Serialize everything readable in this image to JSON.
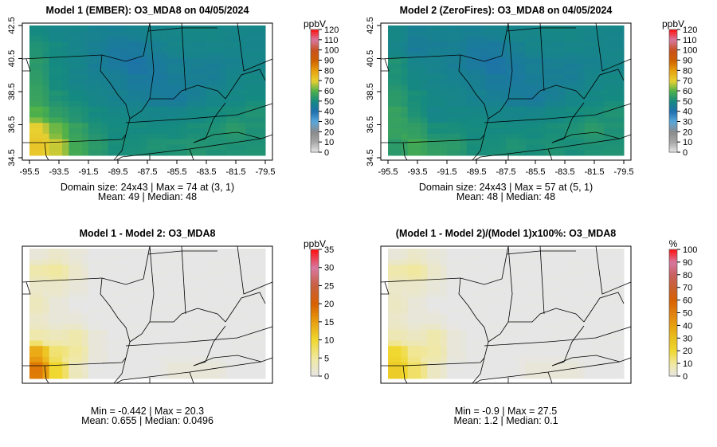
{
  "chart_data": [
    {
      "type": "heatmap",
      "title": "Model 1 (EMBER): O3_MDA8 on 04/05/2024",
      "scale": "conc",
      "unit": "ppbV",
      "legend_ticks": [
        "0",
        "10",
        "20",
        "30",
        "40",
        "50",
        "60",
        "70",
        "80",
        "90",
        "100",
        "110",
        "120"
      ],
      "zlim": [
        0,
        120
      ],
      "xticks": [
        "-95.5",
        "-93.5",
        "-91.5",
        "-89.5",
        "-87.5",
        "-85.5",
        "-83.5",
        "-81.5",
        "-79.5"
      ],
      "yticks": [
        "34.5",
        "36.5",
        "38.5",
        "40.5",
        "42.5"
      ],
      "stats_line1": "Domain size: 24x43 | Max = 74 at (3, 1)",
      "stats_line2": "Mean: 49 |  Median: 48",
      "grid": [
        [
          50,
          48,
          48,
          47,
          46,
          47,
          48,
          48,
          49,
          49,
          48,
          48
        ],
        [
          52,
          50,
          48,
          46,
          44,
          44,
          46,
          48,
          48,
          48,
          48,
          48
        ],
        [
          54,
          50,
          48,
          46,
          44,
          42,
          44,
          46,
          46,
          46,
          47,
          48
        ],
        [
          55,
          50,
          48,
          47,
          46,
          44,
          44,
          45,
          46,
          46,
          48,
          49
        ],
        [
          56,
          52,
          50,
          48,
          47,
          46,
          45,
          44,
          46,
          48,
          49,
          50
        ],
        [
          60,
          55,
          52,
          50,
          49,
          48,
          48,
          48,
          49,
          50,
          51,
          52
        ],
        [
          70,
          62,
          56,
          52,
          50,
          50,
          50,
          50,
          51,
          52,
          54,
          52
        ],
        [
          72,
          68,
          58,
          54,
          51,
          51,
          52,
          52,
          53,
          52,
          52,
          52
        ]
      ]
    },
    {
      "type": "heatmap",
      "title": "Model 2 (ZeroFires): O3_MDA8 on 04/05/2024",
      "scale": "conc",
      "unit": "ppbV",
      "legend_ticks": [
        "0",
        "10",
        "20",
        "30",
        "40",
        "50",
        "60",
        "70",
        "80",
        "90",
        "100",
        "110",
        "120"
      ],
      "zlim": [
        0,
        120
      ],
      "xticks": [
        "-95.5",
        "-93.5",
        "-91.5",
        "-89.5",
        "-87.5",
        "-85.5",
        "-83.5",
        "-81.5",
        "-79.5"
      ],
      "yticks": [
        "34.5",
        "36.5",
        "38.5",
        "40.5",
        "42.5"
      ],
      "stats_line1": "Domain size: 24x43 | Max = 57 at (5, 1)",
      "stats_line2": "Mean: 48 |  Median: 48",
      "grid": [
        [
          49,
          46,
          47,
          47,
          46,
          47,
          48,
          48,
          49,
          49,
          48,
          48
        ],
        [
          48,
          45,
          46,
          46,
          44,
          44,
          46,
          48,
          48,
          48,
          48,
          48
        ],
        [
          52,
          48,
          47,
          46,
          44,
          42,
          44,
          46,
          46,
          46,
          47,
          48
        ],
        [
          52,
          49,
          48,
          47,
          46,
          44,
          44,
          45,
          46,
          46,
          48,
          49
        ],
        [
          54,
          51,
          49,
          48,
          47,
          46,
          45,
          44,
          46,
          48,
          49,
          50
        ],
        [
          56,
          52,
          48,
          49,
          49,
          48,
          48,
          48,
          49,
          50,
          51,
          52
        ],
        [
          56,
          55,
          51,
          51,
          50,
          50,
          50,
          50,
          51,
          52,
          54,
          52
        ],
        [
          54,
          58,
          55,
          54,
          51,
          51,
          52,
          51,
          52,
          51,
          52,
          52
        ]
      ]
    },
    {
      "type": "heatmap",
      "title": "Model 1 - Model 2: O3_MDA8",
      "scale": "diff",
      "unit": "ppbV",
      "legend_ticks": [
        "0",
        "5",
        "10",
        "15",
        "20",
        "25",
        "30",
        "35"
      ],
      "zlim": [
        0,
        35
      ],
      "stats_line1": "Min = -0.442 | Max = 20.3",
      "stats_line2": "Mean: 0.655 |  Median: 0.0496",
      "grid": [
        [
          1,
          2,
          1,
          0,
          0,
          0,
          0,
          0,
          0,
          0,
          0,
          0
        ],
        [
          4,
          5,
          2,
          0,
          0,
          0,
          0,
          0,
          0,
          0,
          0,
          0
        ],
        [
          2,
          2,
          1,
          0,
          0,
          0,
          0,
          0,
          0,
          0,
          0,
          0
        ],
        [
          3,
          1,
          0,
          0,
          0,
          0,
          0,
          0,
          0,
          0,
          0,
          0
        ],
        [
          2,
          1,
          1,
          0,
          0,
          0,
          0,
          0,
          0,
          0,
          0,
          0
        ],
        [
          4,
          3,
          4,
          1,
          0,
          0,
          0,
          0,
          0,
          0,
          0,
          0
        ],
        [
          14,
          7,
          5,
          1,
          0,
          0,
          0,
          0,
          0,
          0,
          0,
          0
        ],
        [
          18,
          10,
          3,
          0,
          0,
          0,
          0,
          1,
          1,
          1,
          0,
          0
        ]
      ]
    },
    {
      "type": "heatmap",
      "title": "(Model 1 - Model 2)/(Model 1)x100%: O3_MDA8",
      "scale": "pct",
      "unit": "%",
      "legend_ticks": [
        "0",
        "10",
        "20",
        "30",
        "40",
        "50",
        "60",
        "70",
        "80",
        "90",
        "100"
      ],
      "zlim": [
        0,
        100
      ],
      "stats_line1": "Min = -0.9 | Max = 27.5",
      "stats_line2": "Mean: 1.2 |  Median: 0.1",
      "grid": [
        [
          2,
          4,
          2,
          0,
          0,
          0,
          0,
          0,
          0,
          0,
          0,
          0
        ],
        [
          8,
          10,
          4,
          0,
          0,
          0,
          0,
          0,
          0,
          0,
          0,
          0
        ],
        [
          4,
          4,
          2,
          0,
          0,
          0,
          0,
          0,
          0,
          0,
          0,
          0
        ],
        [
          5,
          2,
          0,
          0,
          0,
          0,
          0,
          0,
          0,
          0,
          0,
          0
        ],
        [
          4,
          2,
          2,
          0,
          0,
          0,
          0,
          0,
          0,
          0,
          0,
          0
        ],
        [
          7,
          5,
          8,
          2,
          0,
          0,
          0,
          0,
          0,
          0,
          0,
          0
        ],
        [
          20,
          11,
          9,
          2,
          0,
          0,
          0,
          0,
          0,
          0,
          0,
          0
        ],
        [
          25,
          15,
          5,
          0,
          0,
          0,
          0,
          2,
          2,
          2,
          0,
          0
        ]
      ]
    }
  ],
  "colormaps": {
    "conc": [
      [
        "0",
        "#e8e8e8"
      ],
      [
        "10",
        "#a8a8a8"
      ],
      [
        "20",
        "#8a8a8a"
      ],
      [
        "30",
        "#5aa8dc"
      ],
      [
        "40",
        "#1f6fb0"
      ],
      [
        "50",
        "#158a80"
      ],
      [
        "60",
        "#4db04a"
      ],
      [
        "70",
        "#e8d030"
      ],
      [
        "80",
        "#e8a010"
      ],
      [
        "90",
        "#d06000"
      ],
      [
        "100",
        "#c8501e"
      ],
      [
        "110",
        "#d878a0"
      ],
      [
        "120",
        "#ff1010"
      ]
    ],
    "diff": [
      [
        "0",
        "#e6e6e6"
      ],
      [
        "5",
        "#f0e8a0"
      ],
      [
        "10",
        "#f0d830"
      ],
      [
        "15",
        "#e8a010"
      ],
      [
        "20",
        "#d86000"
      ],
      [
        "25",
        "#c86040"
      ],
      [
        "30",
        "#d878a0"
      ],
      [
        "35",
        "#ff1010"
      ]
    ],
    "pct": [
      [
        "0",
        "#e6e6e6"
      ],
      [
        "10",
        "#f0e8a0"
      ],
      [
        "20",
        "#f0d830"
      ],
      [
        "30",
        "#e8c020"
      ],
      [
        "40",
        "#e8a010"
      ],
      [
        "50",
        "#e08010"
      ],
      [
        "60",
        "#d86000"
      ],
      [
        "70",
        "#c86030"
      ],
      [
        "80",
        "#c86060"
      ],
      [
        "90",
        "#d878a0"
      ],
      [
        "100",
        "#ff1010"
      ]
    ]
  }
}
